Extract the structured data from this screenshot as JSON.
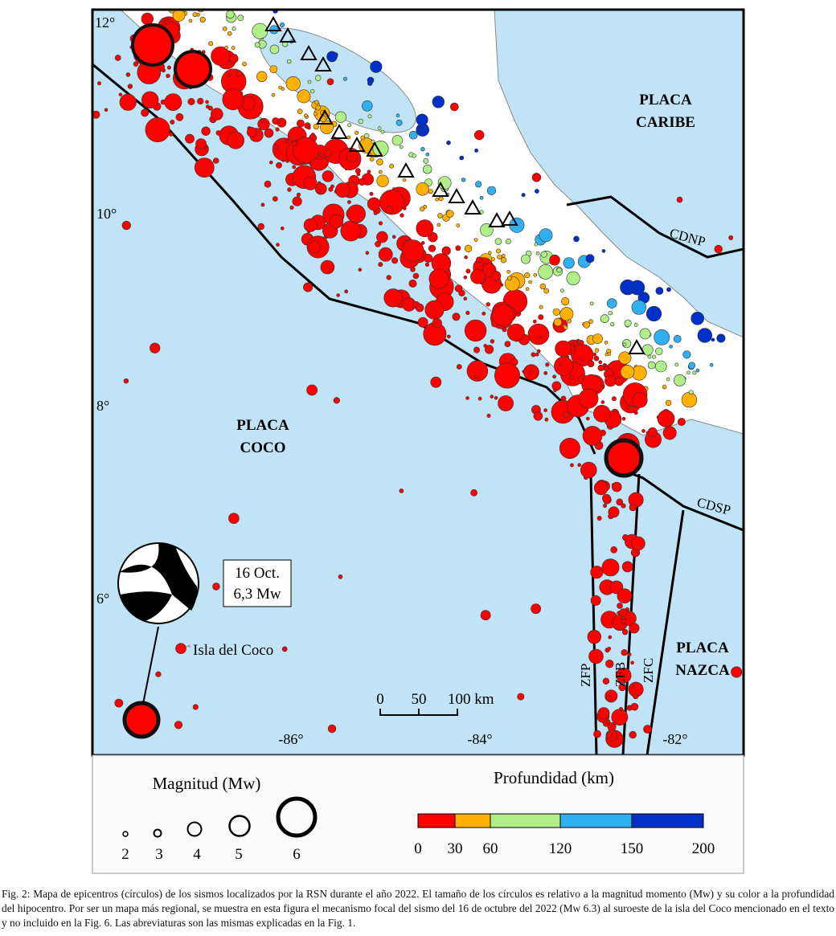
{
  "map": {
    "lat_labels": [
      "12°",
      "10°",
      "8°",
      "6°"
    ],
    "lon_labels": [
      "-86°",
      "-84°",
      "-82°"
    ],
    "plates": [
      [
        "PLACA",
        "CARIBE"
      ],
      [
        "PLACA",
        "COCO"
      ],
      [
        "PLACA",
        "NAZCA"
      ]
    ],
    "features": [
      "CDNP",
      "CDSP",
      "ZFP",
      "ZFB",
      "ZFC"
    ],
    "island": "Isla del Coco",
    "event": [
      "16 Oct.",
      "6,3 Mw"
    ],
    "scale": [
      "0",
      "50",
      "100 km"
    ]
  },
  "legend": {
    "magnitude_title": "Magnitud (Mw)",
    "magnitudes": [
      "2",
      "3",
      "4",
      "5",
      "6"
    ],
    "depth_title": "Profundidad (km)",
    "depths": [
      "0",
      "30",
      "60",
      "120",
      "150",
      "200"
    ],
    "depth_colors": [
      "#ff0000",
      "#ffb000",
      "#b0ee88",
      "#30b0f0",
      "#0030c8"
    ]
  },
  "caption": "Fig. 2: Mapa de epicentros (círculos) de los sismos localizados por la RSN durante el año 2022. El tamaño de los círculos es relativo a la magnitud momento (Mw) y su color a la profundidad del hipocentro. Por ser un mapa más regional, se muestra en esta figura el mecanismo focal del sismo del 16 de octubre del 2022 (Mw 6.3) al suroeste de la isla del Coco mencionado en el texto y no incluido en la Fig. 6. Las abreviaturas son las mismas explicadas en la Fig. 1."
}
